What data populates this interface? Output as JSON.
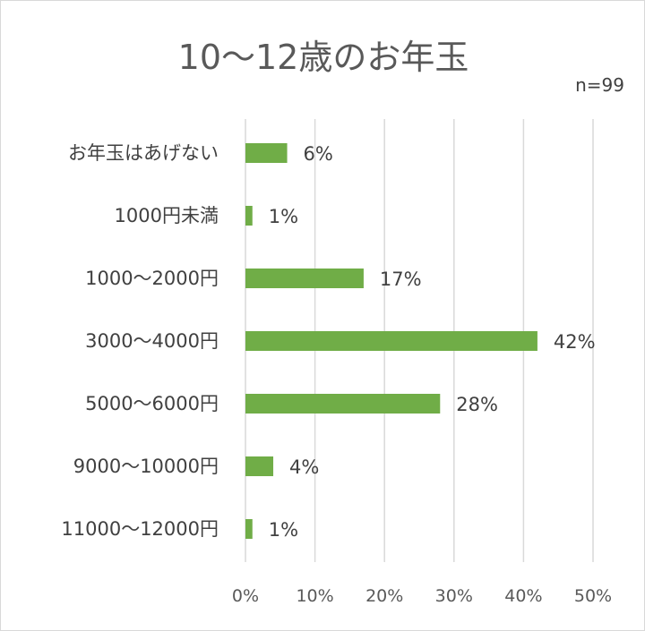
{
  "chart_data": {
    "type": "bar",
    "orientation": "horizontal",
    "title": "10～12歳のお年玉",
    "note": "n=99",
    "categories": [
      "お年玉はあげない",
      "1000円未満",
      "1000～2000円",
      "3000～4000円",
      "5000～6000円",
      "9000～10000円",
      "11000～12000円"
    ],
    "values": [
      6,
      1,
      17,
      42,
      28,
      4,
      1
    ],
    "data_labels": [
      "6%",
      "1%",
      "17%",
      "42%",
      "28%",
      "4%",
      "1%"
    ],
    "xticks": [
      "0%",
      "10%",
      "20%",
      "30%",
      "40%",
      "50%"
    ],
    "xlim": [
      0,
      50
    ],
    "grid": true,
    "legend": "none",
    "bar_color": "#70ad47",
    "grid_color": "#d9d9d9"
  }
}
